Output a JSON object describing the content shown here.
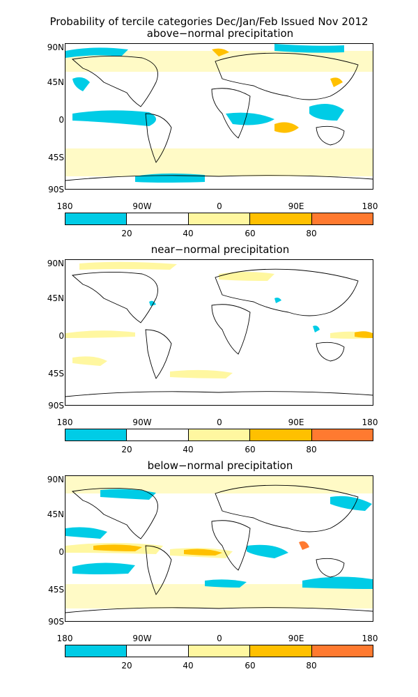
{
  "title": "Probability of tercile categories Dec/Jan/Feb Issued Nov 2012",
  "lat_labels": [
    "90N",
    "45N",
    "0",
    "45S",
    "90S"
  ],
  "lon_labels": [
    "180",
    "90W",
    "0",
    "90E",
    "180"
  ],
  "colorbar": {
    "colors": [
      "#00cce6",
      "#ffffff",
      "#fff7a0",
      "#ffc000",
      "#ff7a30"
    ],
    "tick_labels": [
      "20",
      "40",
      "60",
      "80"
    ]
  },
  "panels": [
    {
      "subtitle": "above−normal precipitation"
    },
    {
      "subtitle": "near−normal precipitation"
    },
    {
      "subtitle": "below−normal precipitation"
    }
  ]
}
